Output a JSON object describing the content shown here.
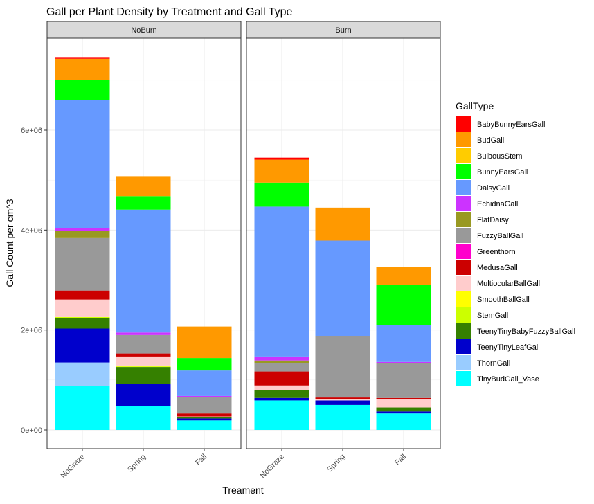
{
  "chart_data": {
    "type": "bar",
    "stacked": true,
    "title": "Gall per Plant Density by Treatment and Gall Type",
    "xlabel": "Treament",
    "ylabel": "Gall Count per cm^3",
    "ylim": [
      0,
      7500000
    ],
    "yticks": [
      0,
      2000000,
      4000000,
      6000000
    ],
    "ytick_labels": [
      "0e+00",
      "2e+06",
      "4e+06",
      "6e+06"
    ],
    "categories": [
      "NoGraze",
      "Spring",
      "Fall"
    ],
    "grid": true,
    "legend_position": "right",
    "legend_title": "GallType",
    "series": [
      {
        "name": "BabyBunnyEarsGall",
        "color": "#FF0000"
      },
      {
        "name": "BudGall",
        "color": "#FF9900"
      },
      {
        "name": "BulbousStem",
        "color": "#FFCC00"
      },
      {
        "name": "BunnyEarsGall",
        "color": "#00FF00"
      },
      {
        "name": "DaisyGall",
        "color": "#6699FF"
      },
      {
        "name": "EchidnaGall",
        "color": "#CC33FF"
      },
      {
        "name": "FlatDaisy",
        "color": "#999922"
      },
      {
        "name": "FuzzyBallGall",
        "color": "#999999"
      },
      {
        "name": "Greenthorn",
        "color": "#FF00CC"
      },
      {
        "name": "MedusaGall",
        "color": "#CC0000"
      },
      {
        "name": "MultiocularBallGall",
        "color": "#FFCCCC"
      },
      {
        "name": "SmoothBallGall",
        "color": "#FFFF00"
      },
      {
        "name": "StemGall",
        "color": "#CCFF00"
      },
      {
        "name": "TeenyTinyBabyFuzzyBallGall",
        "color": "#358000"
      },
      {
        "name": "TeenyTinyLeafGall",
        "color": "#0000CC"
      },
      {
        "name": "ThornGall",
        "color": "#99CCFF"
      },
      {
        "name": "TinyBudGall_Vase",
        "color": "#00FFFF"
      }
    ],
    "panels": [
      {
        "name": "NoBurn",
        "bars": [
          {
            "category": "NoGraze",
            "values": {
              "TinyBudGall_Vase": 880000,
              "ThornGall": 470000,
              "TeenyTinyLeafGall": 680000,
              "TeenyTinyBabyFuzzyBallGall": 210000,
              "StemGall": 20000,
              "SmoothBallGall": 0,
              "MultiocularBallGall": 350000,
              "MedusaGall": 180000,
              "Greenthorn": 0,
              "FuzzyBallGall": 1050000,
              "FlatDaisy": 140000,
              "EchidnaGall": 60000,
              "DaisyGall": 2560000,
              "BunnyEarsGall": 400000,
              "BulbousStem": 0,
              "BudGall": 430000,
              "BabyBunnyEarsGall": 20000
            }
          },
          {
            "category": "Spring",
            "values": {
              "TinyBudGall_Vase": 480000,
              "ThornGall": 0,
              "TeenyTinyLeafGall": 440000,
              "TeenyTinyBabyFuzzyBallGall": 340000,
              "StemGall": 10000,
              "SmoothBallGall": 20000,
              "MultiocularBallGall": 180000,
              "MedusaGall": 60000,
              "Greenthorn": 0,
              "FuzzyBallGall": 370000,
              "FlatDaisy": 0,
              "EchidnaGall": 50000,
              "DaisyGall": 2460000,
              "BunnyEarsGall": 270000,
              "BulbousStem": 0,
              "BudGall": 400000,
              "BabyBunnyEarsGall": 0
            }
          },
          {
            "category": "Fall",
            "values": {
              "TinyBudGall_Vase": 190000,
              "ThornGall": 0,
              "TeenyTinyLeafGall": 40000,
              "TeenyTinyBabyFuzzyBallGall": 20000,
              "StemGall": 0,
              "SmoothBallGall": 0,
              "MultiocularBallGall": 20000,
              "MedusaGall": 60000,
              "Greenthorn": 0,
              "FuzzyBallGall": 330000,
              "FlatDaisy": 0,
              "EchidnaGall": 20000,
              "DaisyGall": 510000,
              "BunnyEarsGall": 250000,
              "BulbousStem": 0,
              "BudGall": 630000,
              "BabyBunnyEarsGall": 0
            }
          }
        ]
      },
      {
        "name": "Burn",
        "bars": [
          {
            "category": "NoGraze",
            "values": {
              "TinyBudGall_Vase": 590000,
              "ThornGall": 0,
              "TeenyTinyLeafGall": 50000,
              "TeenyTinyBabyFuzzyBallGall": 150000,
              "StemGall": 0,
              "SmoothBallGall": 0,
              "MultiocularBallGall": 100000,
              "MedusaGall": 280000,
              "Greenthorn": 0,
              "FuzzyBallGall": 160000,
              "FlatDaisy": 60000,
              "EchidnaGall": 80000,
              "DaisyGall": 3000000,
              "BunnyEarsGall": 480000,
              "BulbousStem": 0,
              "BudGall": 460000,
              "BabyBunnyEarsGall": 40000
            }
          },
          {
            "category": "Spring",
            "values": {
              "TinyBudGall_Vase": 500000,
              "ThornGall": 0,
              "TeenyTinyLeafGall": 90000,
              "TeenyTinyBabyFuzzyBallGall": 0,
              "StemGall": 0,
              "SmoothBallGall": 0,
              "MultiocularBallGall": 20000,
              "MedusaGall": 40000,
              "Greenthorn": 0,
              "FuzzyBallGall": 1230000,
              "FlatDaisy": 0,
              "EchidnaGall": 0,
              "DaisyGall": 1910000,
              "BunnyEarsGall": 0,
              "BulbousStem": 0,
              "BudGall": 660000,
              "BabyBunnyEarsGall": 0
            }
          },
          {
            "category": "Fall",
            "values": {
              "TinyBudGall_Vase": 330000,
              "ThornGall": 0,
              "TeenyTinyLeafGall": 40000,
              "TeenyTinyBabyFuzzyBallGall": 80000,
              "StemGall": 0,
              "SmoothBallGall": 0,
              "MultiocularBallGall": 160000,
              "MedusaGall": 30000,
              "Greenthorn": 0,
              "FuzzyBallGall": 700000,
              "FlatDaisy": 0,
              "EchidnaGall": 20000,
              "DaisyGall": 740000,
              "BunnyEarsGall": 810000,
              "BulbousStem": 0,
              "BudGall": 350000,
              "BabyBunnyEarsGall": 0
            }
          }
        ]
      }
    ]
  }
}
